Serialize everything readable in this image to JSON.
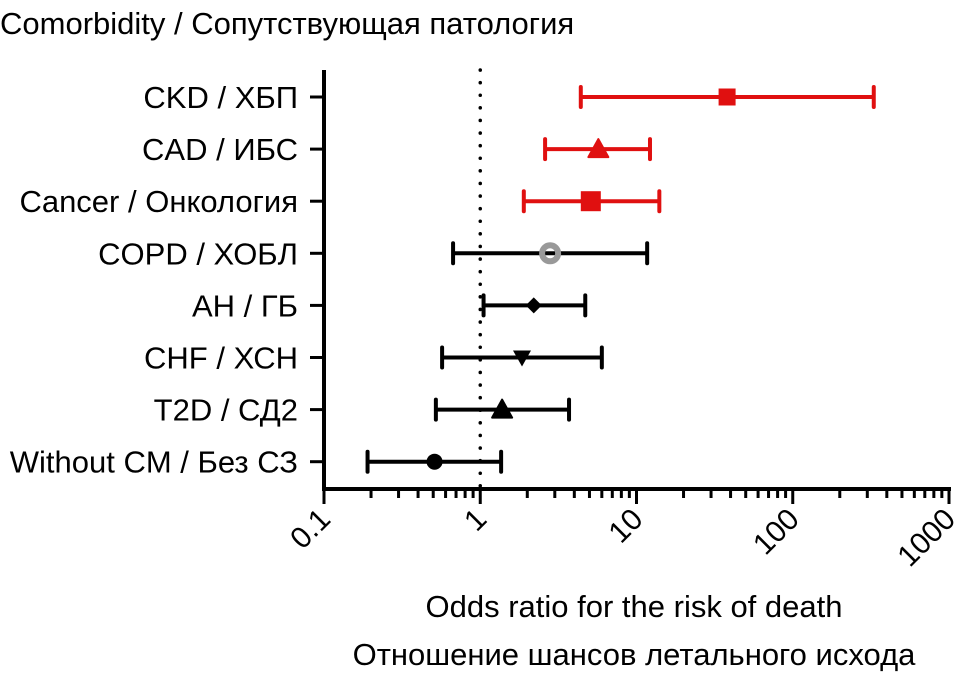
{
  "chart_data": {
    "type": "scatter",
    "subtype": "forest-plot",
    "title": "Comorbidity / Сопутствующая патология",
    "xlabel": [
      "Odds ratio for the risk of death",
      "Отношение шансов летального исхода"
    ],
    "ylabel": "",
    "xscale": "log10",
    "xlim": [
      0.1,
      1000
    ],
    "xticks": [
      0.1,
      1,
      10,
      100,
      1000
    ],
    "xtick_labels": [
      "0.1",
      "1",
      "10",
      "100",
      "1000"
    ],
    "reference_line": {
      "x": 1,
      "style": "dotted"
    },
    "grid": false,
    "categories": [
      "CKD / ХБП",
      "CAD / ИБС",
      "Cancer / Онкология",
      "COPD / ХОБЛ",
      "AH / ГБ",
      "CHF / ХСН",
      "T2D / СД2",
      "Without CM / Без СЗ"
    ],
    "series": [
      {
        "name": "CKD / ХБП",
        "or": 38,
        "ci_low": 4.4,
        "ci_high": 330,
        "marker": "square",
        "color": "#e01010"
      },
      {
        "name": "CAD / ИБС",
        "or": 5.7,
        "ci_low": 2.6,
        "ci_high": 12.2,
        "marker": "triangle-up",
        "color": "#e01010"
      },
      {
        "name": "Cancer / Онкология",
        "or": 5.1,
        "ci_low": 1.9,
        "ci_high": 14,
        "marker": "square",
        "color": "#e01010"
      },
      {
        "name": "COPD / ХОБЛ",
        "or": 2.8,
        "ci_low": 0.67,
        "ci_high": 11.7,
        "marker": "ring",
        "color": "#000000",
        "marker_color": "#999999"
      },
      {
        "name": "AH / ГБ",
        "or": 2.2,
        "ci_low": 1.05,
        "ci_high": 4.7,
        "marker": "diamond",
        "color": "#000000"
      },
      {
        "name": "CHF / ХСН",
        "or": 1.85,
        "ci_low": 0.57,
        "ci_high": 6.0,
        "marker": "triangle-down",
        "color": "#000000"
      },
      {
        "name": "T2D / СД2",
        "or": 1.38,
        "ci_low": 0.52,
        "ci_high": 3.7,
        "marker": "triangle-up",
        "color": "#000000"
      },
      {
        "name": "Without CM / Без СЗ",
        "or": 0.51,
        "ci_low": 0.19,
        "ci_high": 1.36,
        "marker": "circle",
        "color": "#000000"
      }
    ]
  }
}
